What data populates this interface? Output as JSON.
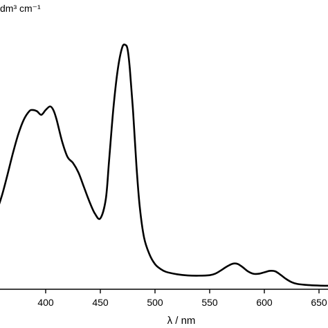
{
  "chart_data": {
    "type": "line",
    "title": "",
    "xlabel": "λ / nm",
    "ylabel_fragment": "dm³ cm⁻¹",
    "xlim": [
      350,
      660
    ],
    "ylim": [
      0,
      1
    ],
    "x_ticks": [
      400,
      450,
      500,
      550,
      600,
      650
    ],
    "grid": false,
    "legend": "none",
    "series": [
      {
        "color": "#000000",
        "x": [
          350,
          355,
          360,
          365,
          370,
          375,
          380,
          385,
          388,
          392,
          396,
          400,
          404,
          407,
          410,
          415,
          420,
          425,
          430,
          435,
          440,
          445,
          450,
          455,
          458,
          462,
          466,
          470,
          473,
          475,
          477,
          480,
          483,
          486,
          490,
          495,
          500,
          505,
          510,
          520,
          530,
          540,
          550,
          555,
          560,
          565,
          570,
          573,
          576,
          580,
          585,
          590,
          595,
          600,
          605,
          610,
          615,
          620,
          625,
          630,
          640,
          650,
          660
        ],
        "y": [
          0.275,
          0.31,
          0.375,
          0.46,
          0.55,
          0.63,
          0.69,
          0.725,
          0.73,
          0.725,
          0.71,
          0.73,
          0.745,
          0.73,
          0.69,
          0.6,
          0.535,
          0.51,
          0.47,
          0.41,
          0.35,
          0.3,
          0.28,
          0.36,
          0.52,
          0.74,
          0.9,
          0.99,
          1.0,
          0.98,
          0.9,
          0.72,
          0.5,
          0.33,
          0.2,
          0.13,
          0.09,
          0.07,
          0.058,
          0.048,
          0.043,
          0.042,
          0.044,
          0.05,
          0.063,
          0.078,
          0.09,
          0.093,
          0.09,
          0.078,
          0.06,
          0.05,
          0.05,
          0.056,
          0.062,
          0.06,
          0.045,
          0.028,
          0.015,
          0.008,
          0.003,
          0.001,
          0.0
        ]
      }
    ]
  }
}
